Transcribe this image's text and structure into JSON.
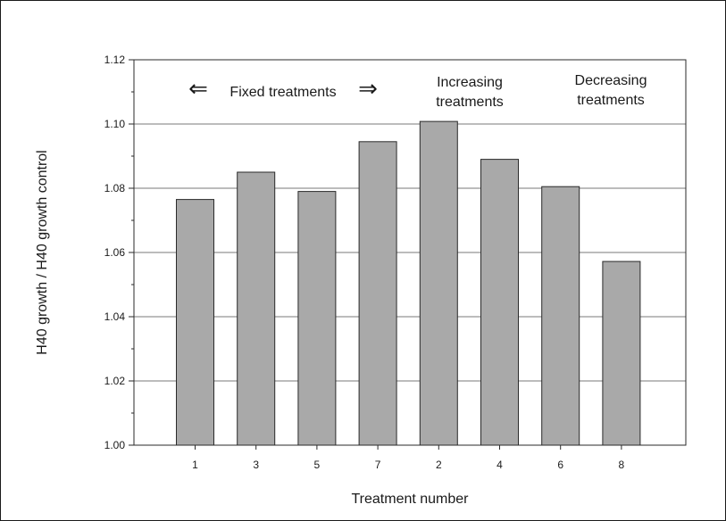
{
  "chart_data": {
    "type": "bar",
    "categories": [
      "1",
      "3",
      "5",
      "7",
      "2",
      "4",
      "6",
      "8"
    ],
    "values": [
      1.0765,
      1.085,
      1.079,
      1.0945,
      1.1008,
      1.089,
      1.0805,
      1.0572
    ],
    "title": "",
    "xlabel": "Treatment number",
    "ylabel": "H40 growth / H40 growth control",
    "ylim": [
      1.0,
      1.12
    ],
    "yticks": [
      "1.00",
      "1.02",
      "1.04",
      "1.06",
      "1.08",
      "1.10",
      "1.12"
    ],
    "grid": "horizontal",
    "legend": "none",
    "bar_color": "#a9a9a9",
    "annotations": {
      "fixed": {
        "text": "Fixed treatments",
        "arrow_left": "⇐",
        "arrow_right": "⇒"
      },
      "increasing": {
        "line1": "Increasing",
        "line2": "treatments"
      },
      "decreasing": {
        "line1": "Decreasing",
        "line2": "treatments"
      }
    }
  }
}
